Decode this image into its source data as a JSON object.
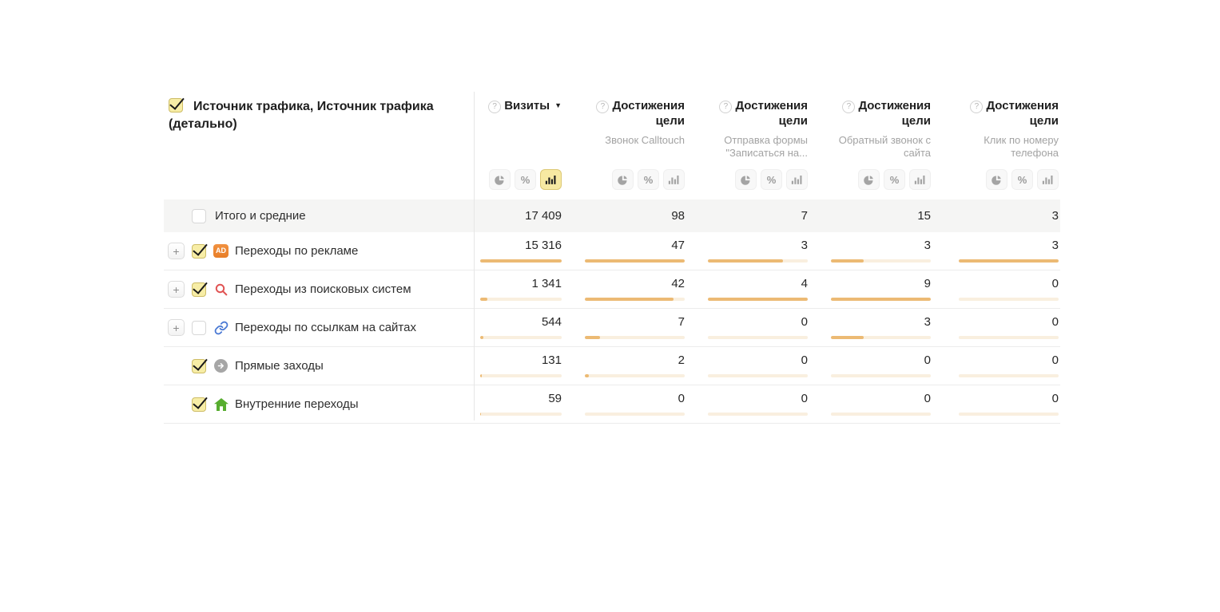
{
  "colors": {
    "toggle_selected_bg": "#f7e9a2",
    "checkbox_checked_bg": "#f7eda6",
    "bar_fill": "#ecba74",
    "bar_track": "#f9efdf",
    "ad_badge": "#e87e28",
    "totals_row_bg": "#f5f5f4",
    "search_icon": "#e05252",
    "link_icon": "#4a79d4",
    "direct_icon": "#a6a6a6",
    "home_icon": "#57ad2f"
  },
  "header": {
    "dimension_title": "Источник трафика, Источник трафика (детально)",
    "help_icon": "?",
    "sort_arrow": "▼",
    "percent_label": "%",
    "metrics": [
      {
        "title": "Визиты",
        "goal": ""
      },
      {
        "title": "Достижения цели",
        "goal": "Звонок Calltouch"
      },
      {
        "title": "Достижения цели",
        "goal": "Отправка формы \"Записаться на..."
      },
      {
        "title": "Достижения цели",
        "goal": "Обратный звонок с сайта"
      },
      {
        "title": "Достижения цели",
        "goal": "Клик по номеру телефона"
      }
    ]
  },
  "totals": {
    "label": "Итого и средние",
    "checked": false,
    "values": [
      "17 409",
      "98",
      "7",
      "15",
      "3"
    ]
  },
  "rows": [
    {
      "label": "Переходы по рекламе",
      "icon": "ad-badge",
      "badge_text": "AD",
      "expandable": true,
      "checked": true,
      "values": [
        "15 316",
        "47",
        "3",
        "3",
        "3"
      ],
      "bars": [
        100,
        100,
        75,
        33,
        100
      ]
    },
    {
      "label": "Переходы из поисковых систем",
      "icon": "search",
      "expandable": true,
      "checked": true,
      "values": [
        "1 341",
        "42",
        "4",
        "9",
        "0"
      ],
      "bars": [
        9,
        89,
        100,
        100,
        0
      ]
    },
    {
      "label": "Переходы по ссылкам на сайтах",
      "icon": "link",
      "expandable": true,
      "checked": false,
      "values": [
        "544",
        "7",
        "0",
        "3",
        "0"
      ],
      "bars": [
        4,
        15,
        0,
        33,
        0
      ]
    },
    {
      "label": "Прямые заходы",
      "icon": "direct-arrow",
      "expandable": false,
      "checked": true,
      "values": [
        "131",
        "2",
        "0",
        "0",
        "0"
      ],
      "bars": [
        1.5,
        4.3,
        0,
        0,
        0
      ]
    },
    {
      "label": "Внутренние переходы",
      "icon": "home",
      "expandable": false,
      "checked": true,
      "values": [
        "59",
        "0",
        "0",
        "0",
        "0"
      ],
      "bars": [
        0.7,
        0,
        0,
        0,
        0
      ]
    }
  ]
}
